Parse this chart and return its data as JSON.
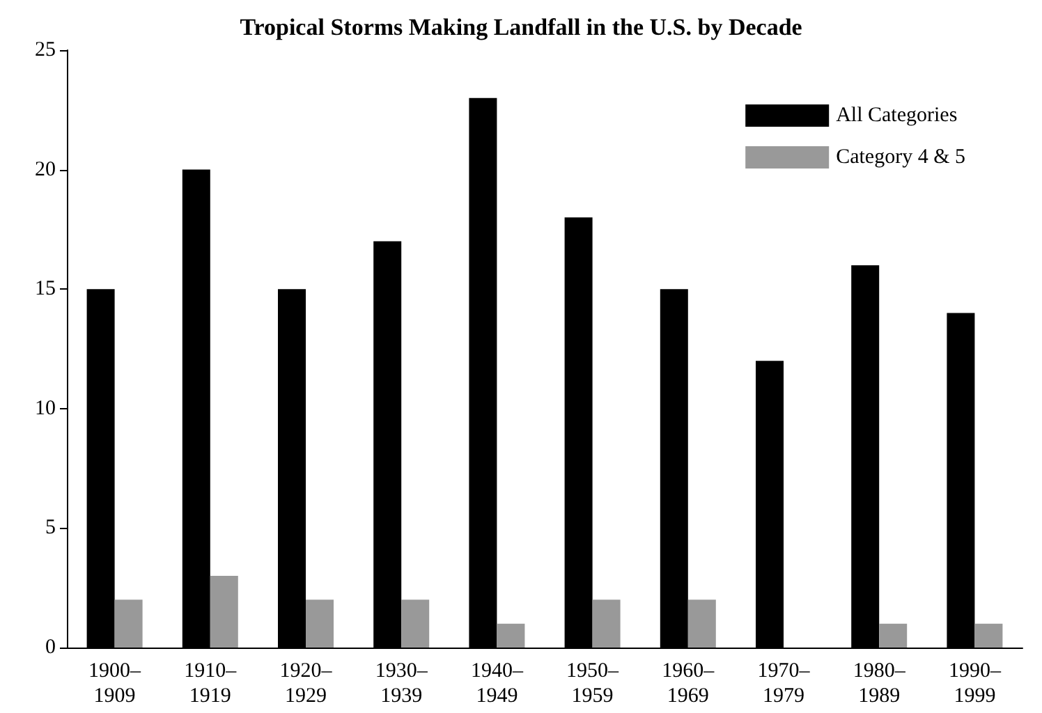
{
  "chart_data": {
    "type": "bar",
    "title": "Tropical Storms Making Landfall in the U.S. by Decade",
    "categories": [
      "1900–\n1909",
      "1910–\n1919",
      "1920–\n1929",
      "1930–\n1939",
      "1940–\n1949",
      "1950–\n1959",
      "1960–\n1969",
      "1970–\n1979",
      "1980–\n1989",
      "1990–\n1999"
    ],
    "series": [
      {
        "name": "All Categories",
        "color": "#000000",
        "values": [
          15,
          20,
          15,
          17,
          23,
          18,
          15,
          12,
          16,
          14
        ]
      },
      {
        "name": "Category 4 & 5",
        "color": "#999999",
        "values": [
          2,
          3,
          2,
          2,
          1,
          2,
          2,
          0,
          1,
          1
        ]
      }
    ],
    "ylim": [
      0,
      25
    ],
    "yticks": [
      0,
      5,
      10,
      15,
      20,
      25
    ],
    "grid": false,
    "legend": "top right"
  }
}
